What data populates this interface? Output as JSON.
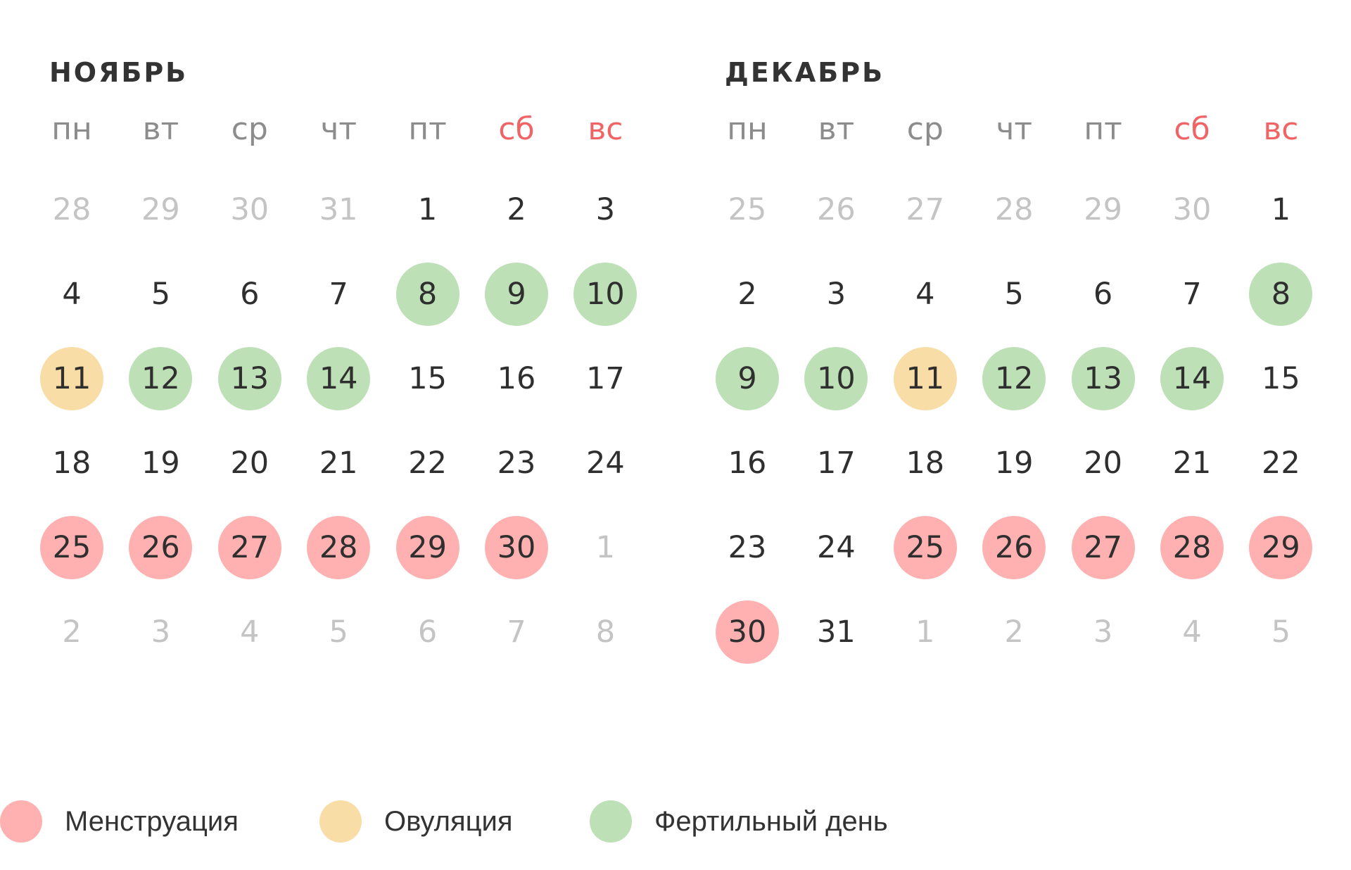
{
  "colors": {
    "menstruation": "#ffb1b1",
    "ovulation": "#f8dea6",
    "fertile": "#bde0b6",
    "weekend": "#f06466",
    "weekday": "#8c8c8c",
    "other_month": "#c4c4c4",
    "text": "#2f2f2f"
  },
  "weekdays": [
    {
      "label": "пн",
      "weekend": false
    },
    {
      "label": "вт",
      "weekend": false
    },
    {
      "label": "ср",
      "weekend": false
    },
    {
      "label": "чт",
      "weekend": false
    },
    {
      "label": "пт",
      "weekend": false
    },
    {
      "label": "сб",
      "weekend": true
    },
    {
      "label": "вс",
      "weekend": true
    }
  ],
  "months": [
    {
      "title": "НОЯБРЬ",
      "weeks": [
        [
          {
            "d": "28",
            "t": "other"
          },
          {
            "d": "29",
            "t": "other"
          },
          {
            "d": "30",
            "t": "other"
          },
          {
            "d": "31",
            "t": "other"
          },
          {
            "d": "1",
            "t": "normal"
          },
          {
            "d": "2",
            "t": "normal"
          },
          {
            "d": "3",
            "t": "normal"
          }
        ],
        [
          {
            "d": "4",
            "t": "normal"
          },
          {
            "d": "5",
            "t": "normal"
          },
          {
            "d": "6",
            "t": "normal"
          },
          {
            "d": "7",
            "t": "normal"
          },
          {
            "d": "8",
            "t": "fertile"
          },
          {
            "d": "9",
            "t": "fertile"
          },
          {
            "d": "10",
            "t": "fertile"
          }
        ],
        [
          {
            "d": "11",
            "t": "ovulation"
          },
          {
            "d": "12",
            "t": "fertile"
          },
          {
            "d": "13",
            "t": "fertile"
          },
          {
            "d": "14",
            "t": "fertile"
          },
          {
            "d": "15",
            "t": "normal"
          },
          {
            "d": "16",
            "t": "normal"
          },
          {
            "d": "17",
            "t": "normal"
          }
        ],
        [
          {
            "d": "18",
            "t": "normal"
          },
          {
            "d": "19",
            "t": "normal"
          },
          {
            "d": "20",
            "t": "normal"
          },
          {
            "d": "21",
            "t": "normal"
          },
          {
            "d": "22",
            "t": "normal"
          },
          {
            "d": "23",
            "t": "normal"
          },
          {
            "d": "24",
            "t": "normal"
          }
        ],
        [
          {
            "d": "25",
            "t": "menstruation"
          },
          {
            "d": "26",
            "t": "menstruation"
          },
          {
            "d": "27",
            "t": "menstruation"
          },
          {
            "d": "28",
            "t": "menstruation"
          },
          {
            "d": "29",
            "t": "menstruation"
          },
          {
            "d": "30",
            "t": "menstruation"
          },
          {
            "d": "1",
            "t": "other"
          }
        ],
        [
          {
            "d": "2",
            "t": "other"
          },
          {
            "d": "3",
            "t": "other"
          },
          {
            "d": "4",
            "t": "other"
          },
          {
            "d": "5",
            "t": "other"
          },
          {
            "d": "6",
            "t": "other"
          },
          {
            "d": "7",
            "t": "other"
          },
          {
            "d": "8",
            "t": "other"
          }
        ]
      ]
    },
    {
      "title": "ДЕКАБРЬ",
      "weeks": [
        [
          {
            "d": "25",
            "t": "other"
          },
          {
            "d": "26",
            "t": "other"
          },
          {
            "d": "27",
            "t": "other"
          },
          {
            "d": "28",
            "t": "other"
          },
          {
            "d": "29",
            "t": "other"
          },
          {
            "d": "30",
            "t": "other"
          },
          {
            "d": "1",
            "t": "normal"
          }
        ],
        [
          {
            "d": "2",
            "t": "normal"
          },
          {
            "d": "3",
            "t": "normal"
          },
          {
            "d": "4",
            "t": "normal"
          },
          {
            "d": "5",
            "t": "normal"
          },
          {
            "d": "6",
            "t": "normal"
          },
          {
            "d": "7",
            "t": "normal"
          },
          {
            "d": "8",
            "t": "fertile"
          }
        ],
        [
          {
            "d": "9",
            "t": "fertile"
          },
          {
            "d": "10",
            "t": "fertile"
          },
          {
            "d": "11",
            "t": "ovulation"
          },
          {
            "d": "12",
            "t": "fertile"
          },
          {
            "d": "13",
            "t": "fertile"
          },
          {
            "d": "14",
            "t": "fertile"
          },
          {
            "d": "15",
            "t": "normal"
          }
        ],
        [
          {
            "d": "16",
            "t": "normal"
          },
          {
            "d": "17",
            "t": "normal"
          },
          {
            "d": "18",
            "t": "normal"
          },
          {
            "d": "19",
            "t": "normal"
          },
          {
            "d": "20",
            "t": "normal"
          },
          {
            "d": "21",
            "t": "normal"
          },
          {
            "d": "22",
            "t": "normal"
          }
        ],
        [
          {
            "d": "23",
            "t": "normal"
          },
          {
            "d": "24",
            "t": "normal"
          },
          {
            "d": "25",
            "t": "menstruation"
          },
          {
            "d": "26",
            "t": "menstruation"
          },
          {
            "d": "27",
            "t": "menstruation"
          },
          {
            "d": "28",
            "t": "menstruation"
          },
          {
            "d": "29",
            "t": "menstruation"
          }
        ],
        [
          {
            "d": "30",
            "t": "menstruation"
          },
          {
            "d": "31",
            "t": "normal"
          },
          {
            "d": "1",
            "t": "other"
          },
          {
            "d": "2",
            "t": "other"
          },
          {
            "d": "3",
            "t": "other"
          },
          {
            "d": "4",
            "t": "other"
          },
          {
            "d": "5",
            "t": "other"
          }
        ]
      ]
    }
  ],
  "legend": [
    {
      "key": "menstruation",
      "label": "Менструация",
      "color": "#ffb1b1"
    },
    {
      "key": "ovulation",
      "label": "Овуляция",
      "color": "#f8dea6"
    },
    {
      "key": "fertile",
      "label": "Фертильный день",
      "color": "#bde0b6"
    }
  ]
}
